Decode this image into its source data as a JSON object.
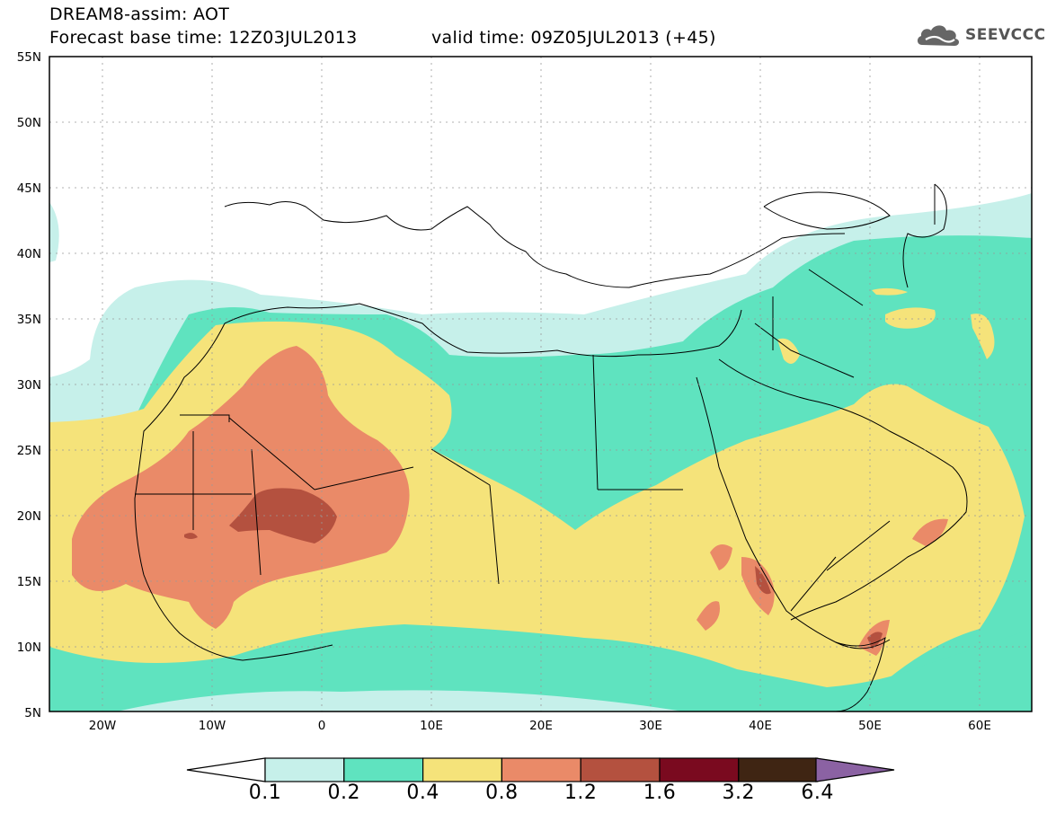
{
  "header": {
    "line1": "DREAM8-assim: AOT",
    "line2a": "Forecast base time: 12Z03JUL2013",
    "line2b": "valid time: 09Z05JUL2013 (+45)"
  },
  "logo": {
    "text": "SEEVCCC",
    "icon": "cloud-logo-icon",
    "color": "#666666"
  },
  "map": {
    "lat_labels": [
      "55N",
      "50N",
      "45N",
      "40N",
      "35N",
      "30N",
      "25N",
      "20N",
      "15N",
      "10N",
      "5N"
    ],
    "lon_labels": [
      "20W",
      "10W",
      "0",
      "10E",
      "20E",
      "30E",
      "40E",
      "50E",
      "60E"
    ]
  },
  "legend": {
    "labels": [
      "0.1",
      "0.2",
      "0.4",
      "0.8",
      "1.2",
      "1.6",
      "3.2",
      "6.4"
    ],
    "colors": [
      "#c6f0ea",
      "#5fe3bf",
      "#f5e37a",
      "#ea8a68",
      "#b4513f",
      "#7a0a1f",
      "#3f2513",
      "#8b62a3"
    ],
    "under_color": "#ffffff"
  },
  "chart_data": {
    "type": "heatmap",
    "title": "DREAM8-assim: AOT",
    "variable": "AOT",
    "lon_range": [
      -25,
      65
    ],
    "lat_range": [
      5,
      55
    ],
    "levels": [
      0.1,
      0.2,
      0.4,
      0.8,
      1.2,
      1.6,
      3.2,
      6.4
    ]
  }
}
